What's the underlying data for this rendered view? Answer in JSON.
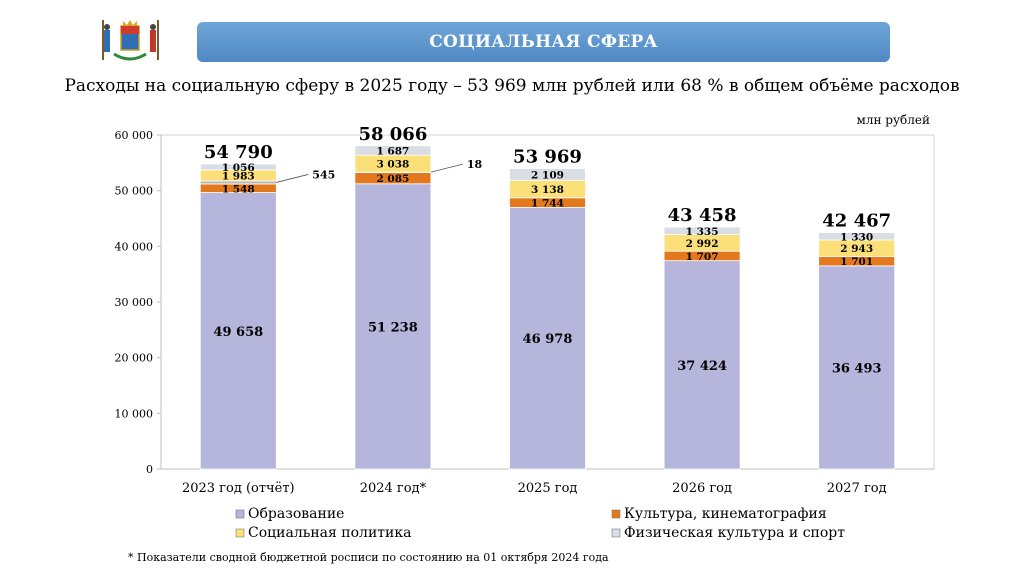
{
  "header": {
    "title": "СОЦИАЛЬНАЯ СФЕРА",
    "subtitle": "Расходы на социальную сферу в 2025 году – 53 969 млн рублей или 68 % в общем объёме расходов"
  },
  "footnote": "* Показатели сводной бюджетной росписи по состоянию на 01 октября 2024 года",
  "chart_data": {
    "type": "bar",
    "stacked": true,
    "unit_label": "млн рублей",
    "categories": [
      "2023 год (отчёт)",
      "2024 год*",
      "2025 год",
      "2026 год",
      "2027 год"
    ],
    "ylim": [
      0,
      60000
    ],
    "yticks": [
      0,
      10000,
      20000,
      30000,
      40000,
      50000,
      60000
    ],
    "ytick_labels": [
      "0",
      "10 000",
      "20 000",
      "30 000",
      "40 000",
      "50 000",
      "60 000"
    ],
    "series": [
      {
        "name": "Образование",
        "color": "#b6b5dc",
        "values": [
          49658,
          51238,
          46978,
          37424,
          36493
        ],
        "labels": [
          "49 658",
          "51 238",
          "46 978",
          "37 424",
          "36 493"
        ]
      },
      {
        "name": "Культура, кинематография",
        "color": "#e4781c",
        "values": [
          1548,
          2085,
          1744,
          1707,
          1701
        ],
        "labels": [
          "1 548",
          "2 085",
          "1 744",
          "1 707",
          "1 701"
        ]
      },
      {
        "name": "Социальная политика",
        "color": "#fbe07a",
        "values": [
          1983,
          3038,
          3138,
          2992,
          2943
        ],
        "labels": [
          "1 983",
          "3 038",
          "3 138",
          "2 992",
          "2 943"
        ]
      },
      {
        "name": "Физическая культура и спорт",
        "color": "#d9dde4",
        "values": [
          1056,
          1687,
          2109,
          1335,
          1330
        ],
        "labels": [
          "1 056",
          "1 687",
          "2 109",
          "1 335",
          "1 330"
        ]
      }
    ],
    "extra": {
      "values": [
        545,
        18,
        0,
        0,
        0
      ],
      "labels": [
        "545",
        "18",
        "",
        "",
        ""
      ]
    },
    "totals": [
      54790,
      58066,
      53969,
      43458,
      42467
    ],
    "total_labels": [
      "54 790",
      "58 066",
      "53 969",
      "43 458",
      "42 467"
    ],
    "legend_position": "bottom",
    "grid": false
  }
}
